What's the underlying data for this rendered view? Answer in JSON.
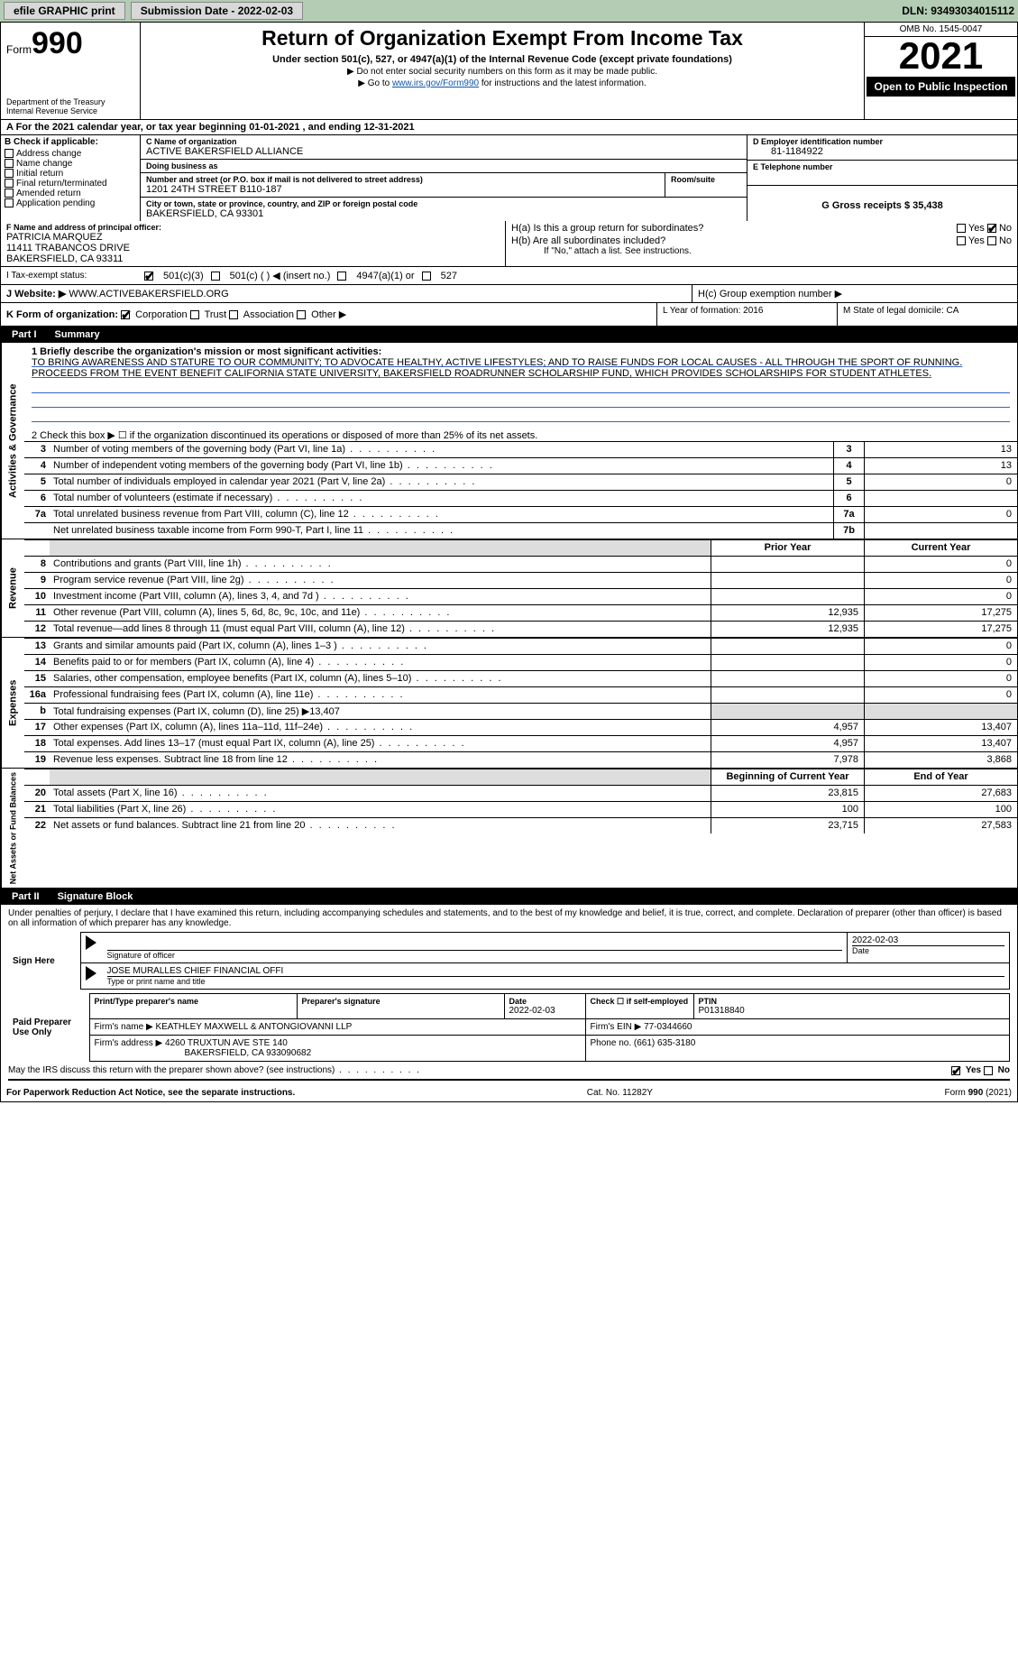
{
  "topbar": {
    "efile": "efile GRAPHIC print",
    "submission_label": "Submission Date - 2022-02-03",
    "dln_label": "DLN: 93493034015112"
  },
  "header": {
    "form_prefix": "Form",
    "form_number": "990",
    "title": "Return of Organization Exempt From Income Tax",
    "subtitle": "Under section 501(c), 527, or 4947(a)(1) of the Internal Revenue Code (except private foundations)",
    "note1": "▶ Do not enter social security numbers on this form as it may be made public.",
    "note2_pre": "▶ Go to ",
    "note2_link": "www.irs.gov/Form990",
    "note2_post": " for instructions and the latest information.",
    "dept": "Department of the Treasury",
    "irs": "Internal Revenue Service",
    "omb": "OMB No. 1545-0047",
    "year": "2021",
    "open_public": "Open to Public Inspection"
  },
  "cal_year": "A For the 2021 calendar year, or tax year beginning 01-01-2021    , and ending 12-31-2021",
  "checkcol": {
    "hdr": "B Check if applicable:",
    "items": [
      "Address change",
      "Name change",
      "Initial return",
      "Final return/terminated",
      "Amended return",
      "Application pending"
    ]
  },
  "org": {
    "name_lbl": "C Name of organization",
    "name": "ACTIVE BAKERSFIELD ALLIANCE",
    "dba_lbl": "Doing business as",
    "dba": "",
    "addr_lbl": "Number and street (or P.O. box if mail is not delivered to street address)",
    "room_lbl": "Room/suite",
    "addr": "1201 24TH STREET B110-187",
    "city_lbl": "City or town, state or province, country, and ZIP or foreign postal code",
    "city": "BAKERSFIELD, CA  93301"
  },
  "rc": {
    "ein_lbl": "D Employer identification number",
    "ein": "81-1184922",
    "tel_lbl": "E Telephone number",
    "tel": "",
    "gross_lbl": "G Gross receipts $ 35,438"
  },
  "officer": {
    "lbl": "F  Name and address of principal officer:",
    "name": "PATRICIA MARQUEZ",
    "addr1": "11411 TRABANCOS DRIVE",
    "addr2": "BAKERSFIELD, CA  93311"
  },
  "h": {
    "ha": "H(a)  Is this a group return for subordinates?",
    "hb": "H(b)  Are all subordinates included?",
    "hb_note": "If \"No,\" attach a list. See instructions.",
    "hc": "H(c)  Group exemption number ▶",
    "yes": "Yes",
    "no": "No"
  },
  "tax_status": {
    "lbl": "I  Tax-exempt status:",
    "o1": "501(c)(3)",
    "o2": "501(c) (   ) ◀ (insert no.)",
    "o3": "4947(a)(1) or",
    "o4": "527"
  },
  "website": {
    "lbl": "J Website: ▶",
    "val": "WWW.ACTIVEBAKERSFIELD.ORG"
  },
  "formtype": {
    "lbl": "K Form of organization:",
    "o1": "Corporation",
    "o2": "Trust",
    "o3": "Association",
    "o4": "Other ▶",
    "l_lbl": "L Year of formation: 2016",
    "m_lbl": "M State of legal domicile: CA"
  },
  "part1": {
    "num": "Part I",
    "title": "Summary"
  },
  "summary": {
    "vtab1": "Activities & Governance",
    "q1_lbl": "1 Briefly describe the organization's mission or most significant activities:",
    "q1_text": "TO BRING AWARENESS AND STATURE TO OUR COMMUNITY; TO ADVOCATE HEALTHY, ACTIVE LIFESTYLES; AND TO RAISE FUNDS FOR LOCAL CAUSES - ALL THROUGH THE SPORT OF RUNNING. PROCEEDS FROM THE EVENT BENEFIT CALIFORNIA STATE UNIVERSITY, BAKERSFIELD ROADRUNNER SCHOLARSHIP FUND, WHICH PROVIDES SCHOLARSHIPS FOR STUDENT ATHLETES.",
    "q2": "2  Check this box ▶ ☐  if the organization discontinued its operations or disposed of more than 25% of its net assets.",
    "rows_a": [
      {
        "n": "3",
        "t": "Number of voting members of the governing body (Part VI, line 1a)",
        "box": "3",
        "v": "13"
      },
      {
        "n": "4",
        "t": "Number of independent voting members of the governing body (Part VI, line 1b)",
        "box": "4",
        "v": "13"
      },
      {
        "n": "5",
        "t": "Total number of individuals employed in calendar year 2021 (Part V, line 2a)",
        "box": "5",
        "v": "0"
      },
      {
        "n": "6",
        "t": "Total number of volunteers (estimate if necessary)",
        "box": "6",
        "v": ""
      },
      {
        "n": "7a",
        "t": "Total unrelated business revenue from Part VIII, column (C), line 12",
        "box": "7a",
        "v": "0"
      },
      {
        "n": "",
        "t": "Net unrelated business taxable income from Form 990-T, Part I, line 11",
        "box": "7b",
        "v": ""
      }
    ],
    "vtab2": "Revenue",
    "col_hdr": {
      "py": "Prior Year",
      "cy": "Current Year"
    },
    "rows_r": [
      {
        "n": "8",
        "t": "Contributions and grants (Part VIII, line 1h)",
        "py": "",
        "cy": "0"
      },
      {
        "n": "9",
        "t": "Program service revenue (Part VIII, line 2g)",
        "py": "",
        "cy": "0"
      },
      {
        "n": "10",
        "t": "Investment income (Part VIII, column (A), lines 3, 4, and 7d )",
        "py": "",
        "cy": "0"
      },
      {
        "n": "11",
        "t": "Other revenue (Part VIII, column (A), lines 5, 6d, 8c, 9c, 10c, and 11e)",
        "py": "12,935",
        "cy": "17,275"
      },
      {
        "n": "12",
        "t": "Total revenue—add lines 8 through 11 (must equal Part VIII, column (A), line 12)",
        "py": "12,935",
        "cy": "17,275"
      }
    ],
    "vtab3": "Expenses",
    "rows_e": [
      {
        "n": "13",
        "t": "Grants and similar amounts paid (Part IX, column (A), lines 1–3 )",
        "py": "",
        "cy": "0"
      },
      {
        "n": "14",
        "t": "Benefits paid to or for members (Part IX, column (A), line 4)",
        "py": "",
        "cy": "0"
      },
      {
        "n": "15",
        "t": "Salaries, other compensation, employee benefits (Part IX, column (A), lines 5–10)",
        "py": "",
        "cy": "0"
      },
      {
        "n": "16a",
        "t": "Professional fundraising fees (Part IX, column (A), line 11e)",
        "py": "",
        "cy": "0"
      },
      {
        "n": "b",
        "t": "Total fundraising expenses (Part IX, column (D), line 25) ▶13,407",
        "py": "shade",
        "cy": "shade"
      },
      {
        "n": "17",
        "t": "Other expenses (Part IX, column (A), lines 11a–11d, 11f–24e)",
        "py": "4,957",
        "cy": "13,407"
      },
      {
        "n": "18",
        "t": "Total expenses. Add lines 13–17 (must equal Part IX, column (A), line 25)",
        "py": "4,957",
        "cy": "13,407"
      },
      {
        "n": "19",
        "t": "Revenue less expenses. Subtract line 18 from line 12",
        "py": "7,978",
        "cy": "3,868"
      }
    ],
    "vtab4": "Net Assets or Fund Balances",
    "col_hdr2": {
      "py": "Beginning of Current Year",
      "cy": "End of Year"
    },
    "rows_n": [
      {
        "n": "20",
        "t": "Total assets (Part X, line 16)",
        "py": "23,815",
        "cy": "27,683"
      },
      {
        "n": "21",
        "t": "Total liabilities (Part X, line 26)",
        "py": "100",
        "cy": "100"
      },
      {
        "n": "22",
        "t": "Net assets or fund balances. Subtract line 21 from line 20",
        "py": "23,715",
        "cy": "27,583"
      }
    ]
  },
  "part2": {
    "num": "Part II",
    "title": "Signature Block"
  },
  "sig": {
    "decl": "Under penalties of perjury, I declare that I have examined this return, including accompanying schedules and statements, and to the best of my knowledge and belief, it is true, correct, and complete. Declaration of preparer (other than officer) is based on all information of which preparer has any knowledge.",
    "sign_here": "Sign Here",
    "sig_officer": "Signature of officer",
    "date": "Date",
    "date_val": "2022-02-03",
    "officer_name": "JOSE MURALLES CHIEF FINANCIAL OFFI",
    "type_name": "Type or print name and title",
    "paid": "Paid Preparer Use Only",
    "pt_name_lbl": "Print/Type preparer's name",
    "pt_sig_lbl": "Preparer's signature",
    "pt_date_lbl": "Date",
    "pt_date": "2022-02-03",
    "pt_check": "Check ☐ if self-employed",
    "ptin_lbl": "PTIN",
    "ptin": "P01318840",
    "firm_lbl": "Firm's name    ▶",
    "firm": "KEATHLEY MAXWELL & ANTONGIOVANNI LLP",
    "firm_ein_lbl": "Firm's EIN ▶ 77-0344660",
    "firm_addr_lbl": "Firm's address ▶",
    "firm_addr1": "4260 TRUXTUN AVE STE 140",
    "firm_addr2": "BAKERSFIELD, CA  933090682",
    "phone_lbl": "Phone no. (661) 635-3180",
    "may_irs": "May the IRS discuss this return with the preparer shown above? (see instructions)"
  },
  "footer": {
    "left": "For Paperwork Reduction Act Notice, see the separate instructions.",
    "mid": "Cat. No. 11282Y",
    "right": "Form 990 (2021)"
  }
}
